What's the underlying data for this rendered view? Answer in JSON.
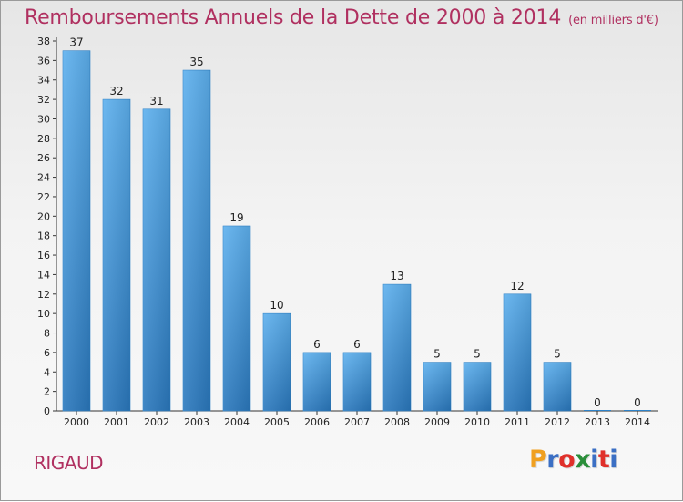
{
  "chart_data": {
    "type": "bar",
    "title": "Remboursements Annuels de la Dette de 2000 à 2014",
    "subtitle": "(en milliers d'€)",
    "categories": [
      "2000",
      "2001",
      "2002",
      "2003",
      "2004",
      "2005",
      "2006",
      "2007",
      "2008",
      "2009",
      "2010",
      "2011",
      "2012",
      "2013",
      "2014"
    ],
    "values": [
      37,
      32,
      31,
      35,
      19,
      10,
      6,
      6,
      13,
      5,
      5,
      12,
      5,
      0,
      0
    ],
    "ylim": [
      0,
      38
    ],
    "yticks": [
      0,
      2,
      4,
      6,
      8,
      10,
      12,
      14,
      16,
      18,
      20,
      22,
      24,
      26,
      28,
      30,
      32,
      34,
      36,
      38
    ],
    "grid": false,
    "bar_color": "#3f92d6"
  },
  "commune": "RIGAUD",
  "logo": {
    "letters": [
      "P",
      "r",
      "o",
      "x",
      "i",
      "t",
      "i"
    ],
    "colors": [
      "#f0a020",
      "#3b6fc4",
      "#e0302a",
      "#2a8e3a",
      "#3b6fc4",
      "#e0302a",
      "#3b6fc4"
    ]
  }
}
